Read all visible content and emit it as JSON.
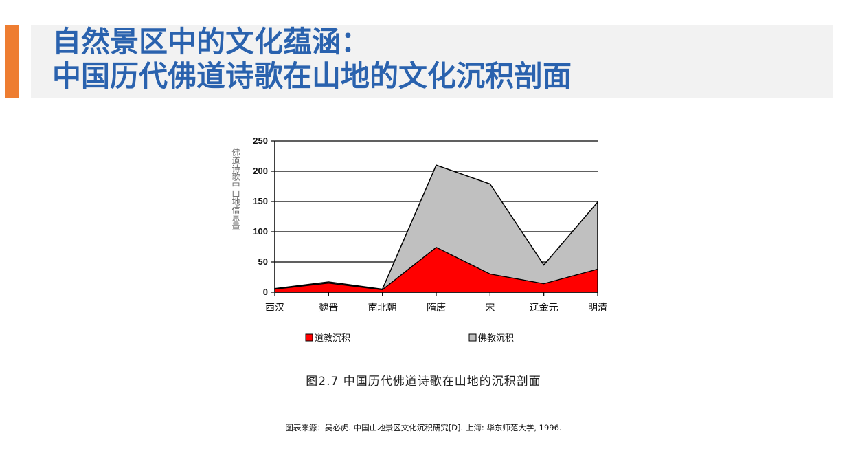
{
  "colors": {
    "accent": "#ee7d31",
    "title": "#2a62ae",
    "title_bg": "#f2f2f2",
    "taoist": "#ff0000",
    "buddhist": "#c0c0c0"
  },
  "title": {
    "line1": "自然景区中的文化蕴涵：",
    "line2": "中国历代佛道诗歌在山地的文化沉积剖面"
  },
  "chart_data": {
    "type": "area",
    "stacked": true,
    "categories": [
      "西汉",
      "魏晋",
      "南北朝",
      "隋唐",
      "宋",
      "辽金元",
      "明清"
    ],
    "series": [
      {
        "name": "道教沉积",
        "values": [
          5,
          15,
          4,
          74,
          30,
          14,
          38
        ],
        "color": "#ff0000"
      },
      {
        "name": "佛教沉积",
        "values": [
          1,
          2,
          1,
          136,
          149,
          31,
          111
        ],
        "color": "#c0c0c0"
      }
    ],
    "ylabel": "佛道诗歌中山地信息量",
    "ylim": [
      0,
      250
    ],
    "yticks": [
      "0",
      "50",
      "100",
      "150",
      "200",
      "250"
    ],
    "grid": true,
    "legend_position": "bottom"
  },
  "caption": "图2.7 中国历代佛道诗歌在山地的沉积剖面",
  "source": "图表来源：吴必虎. 中国山地景区文化沉积研究[D]. 上海: 华东师范大学, 1996."
}
